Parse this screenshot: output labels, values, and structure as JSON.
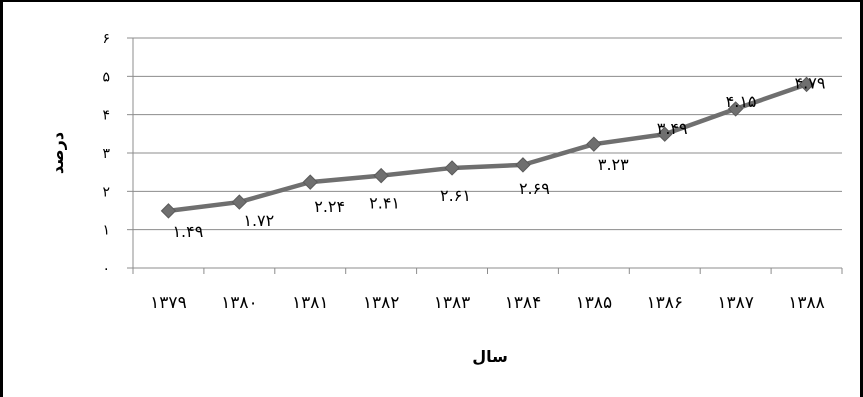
{
  "chart_data": {
    "type": "line",
    "title": "",
    "xlabel": "سال",
    "ylabel": "درصد",
    "categories": [
      "۱۳۷۹",
      "۱۳۸۰",
      "۱۳۸۱",
      "۱۳۸۲",
      "۱۳۸۳",
      "۱۳۸۴",
      "۱۳۸۵",
      "۱۳۸۶",
      "۱۳۸۷",
      "۱۳۸۸"
    ],
    "series": [
      {
        "values": [
          1.49,
          1.72,
          2.24,
          2.41,
          2.61,
          2.69,
          3.23,
          3.49,
          4.15,
          4.79
        ],
        "labels": [
          "۱.۴۹",
          "۱.۷۲",
          "۲.۲۴",
          "۲.۴۱",
          "۲.۶۱",
          "۲.۶۹",
          "۳.۲۳",
          "۳.۴۹",
          "۴.۱۵",
          "۴.۷۹"
        ],
        "color": "#6f6f6f",
        "marker": "diamond"
      }
    ],
    "ylim": [
      0,
      6
    ],
    "yticks": [
      0,
      1,
      2,
      3,
      4,
      5,
      6
    ],
    "ytick_labels": [
      "۰",
      "۱",
      "۲",
      "۳",
      "۴",
      "۵",
      "۶"
    ],
    "grid": true,
    "legend": "none"
  }
}
